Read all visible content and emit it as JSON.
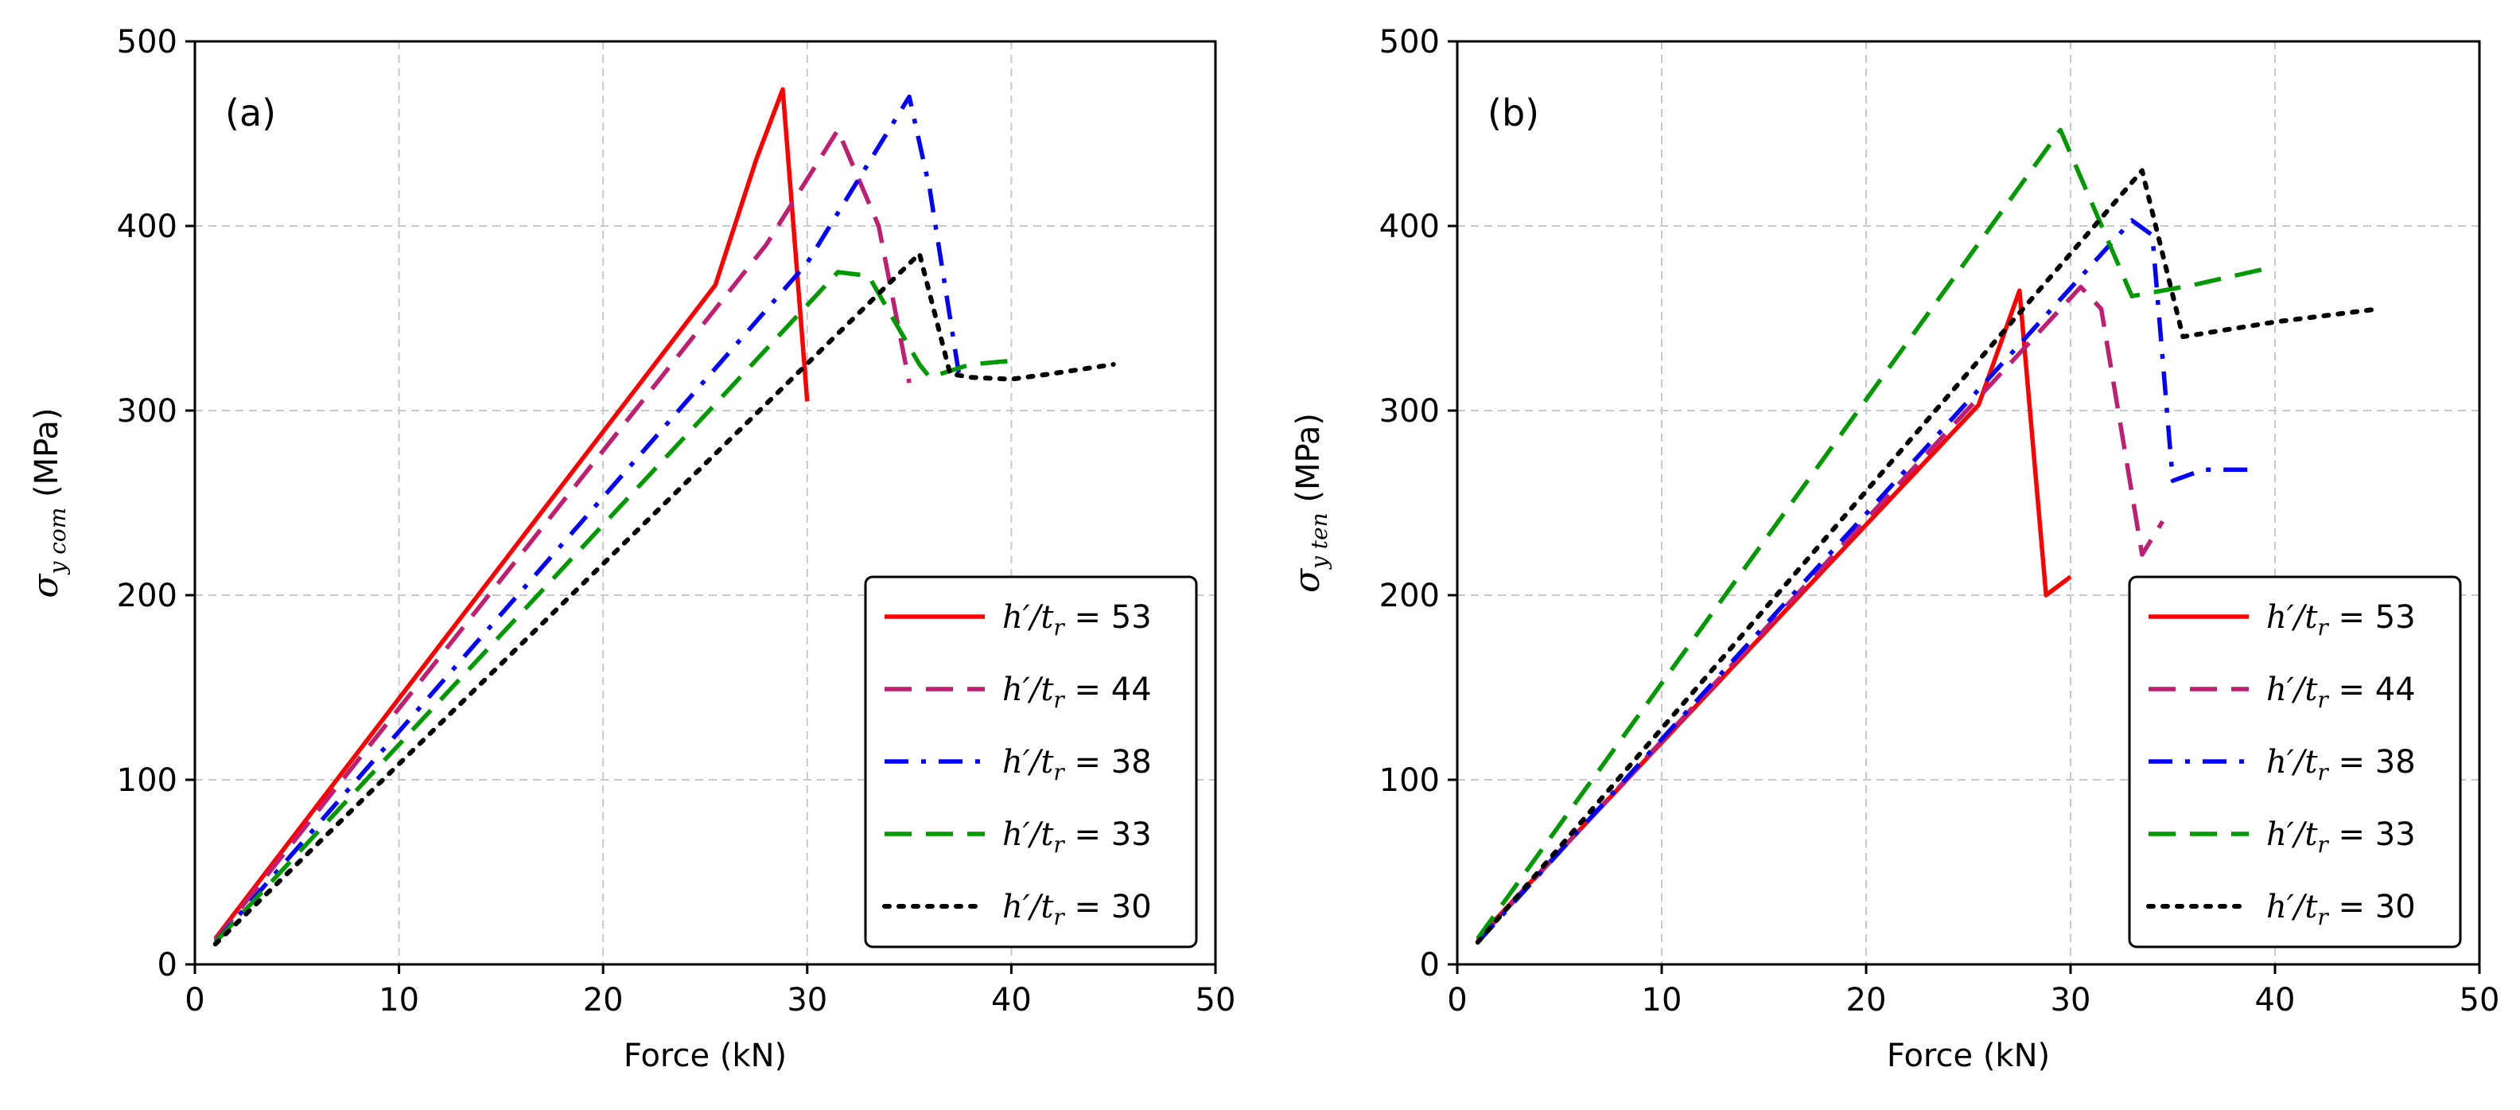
{
  "chart_data": [
    {
      "panel": "(a)",
      "type": "line",
      "xlabel": "Force (kN)",
      "ylabel": {
        "symbol": "σ",
        "subscript": "y com",
        "unit": "(MPa)"
      },
      "xlim": [
        0,
        50
      ],
      "ylim": [
        0,
        500
      ],
      "xticks": [
        "0",
        "10",
        "20",
        "30",
        "40",
        "50"
      ],
      "yticks": [
        "0",
        "100",
        "200",
        "300",
        "400",
        "500"
      ],
      "grid": true,
      "legend_position": "lower-right",
      "series": [
        {
          "name": "h′/t_r = 53",
          "label_value": "53",
          "color": "#ff0000",
          "style": "solid",
          "x": [
            1,
            25.5,
            27.5,
            28.8,
            30
          ],
          "y": [
            14,
            368,
            436,
            474,
            305
          ]
        },
        {
          "name": "h′/t_r = 44",
          "label_value": "44",
          "color": "#bf1e73",
          "style": "dashed",
          "x": [
            1,
            28,
            31.5,
            33.5,
            35
          ],
          "y": [
            13,
            390,
            452,
            400,
            315
          ]
        },
        {
          "name": "h′/t_r = 38",
          "label_value": "38",
          "color": "#0000ff",
          "style": "dashdot",
          "x": [
            1,
            30,
            35,
            36,
            37.5
          ],
          "y": [
            12,
            380,
            470,
            420,
            315
          ]
        },
        {
          "name": "h′/t_r = 33",
          "label_value": "33",
          "color": "#009900",
          "style": "dashed",
          "x": [
            1,
            31.5,
            33,
            35.5,
            36,
            38,
            40
          ],
          "y": [
            12,
            375,
            373,
            325,
            318,
            325,
            327
          ]
        },
        {
          "name": "h′/t_r = 30",
          "label_value": "30",
          "color": "#000000",
          "style": "dotted",
          "x": [
            1,
            35.5,
            37,
            38,
            40,
            42,
            45
          ],
          "y": [
            11,
            385,
            320,
            318,
            317,
            320,
            325
          ]
        }
      ]
    },
    {
      "panel": "(b)",
      "type": "line",
      "xlabel": "Force (kN)",
      "ylabel": {
        "symbol": "σ",
        "subscript": "y ten",
        "unit": "(MPa)"
      },
      "xlim": [
        0,
        50
      ],
      "ylim": [
        0,
        500
      ],
      "xticks": [
        "0",
        "10",
        "20",
        "30",
        "40",
        "50"
      ],
      "yticks": [
        "0",
        "100",
        "200",
        "300",
        "400",
        "500"
      ],
      "grid": true,
      "legend_position": "lower-right",
      "series": [
        {
          "name": "h′/t_r = 53",
          "label_value": "53",
          "color": "#ff0000",
          "style": "solid",
          "x": [
            1,
            25.5,
            27.5,
            28.8,
            30
          ],
          "y": [
            14,
            303,
            365,
            200,
            210
          ]
        },
        {
          "name": "h′/t_r = 44",
          "label_value": "44",
          "color": "#bf1e73",
          "style": "dashed",
          "x": [
            1,
            30.5,
            31.5,
            33.5,
            34.5
          ],
          "y": [
            13,
            367,
            355,
            222,
            240
          ]
        },
        {
          "name": "h′/t_r = 38",
          "label_value": "38",
          "color": "#0000ff",
          "style": "dashdot",
          "x": [
            1,
            33,
            34,
            35,
            36.5,
            39
          ],
          "y": [
            12,
            403,
            395,
            262,
            268,
            268
          ]
        },
        {
          "name": "h′/t_r = 33",
          "label_value": "33",
          "color": "#009900",
          "style": "dashed",
          "x": [
            1,
            29.5,
            33,
            36,
            40
          ],
          "y": [
            14,
            452,
            362,
            368,
            378
          ]
        },
        {
          "name": "h′/t_r = 30",
          "label_value": "30",
          "color": "#000000",
          "style": "dotted",
          "x": [
            1,
            33.5,
            35.5,
            40,
            45
          ],
          "y": [
            12,
            430,
            340,
            348,
            355
          ]
        }
      ]
    }
  ],
  "legend": {
    "prefix": "h′/t",
    "sub": "r",
    "eq": "="
  }
}
